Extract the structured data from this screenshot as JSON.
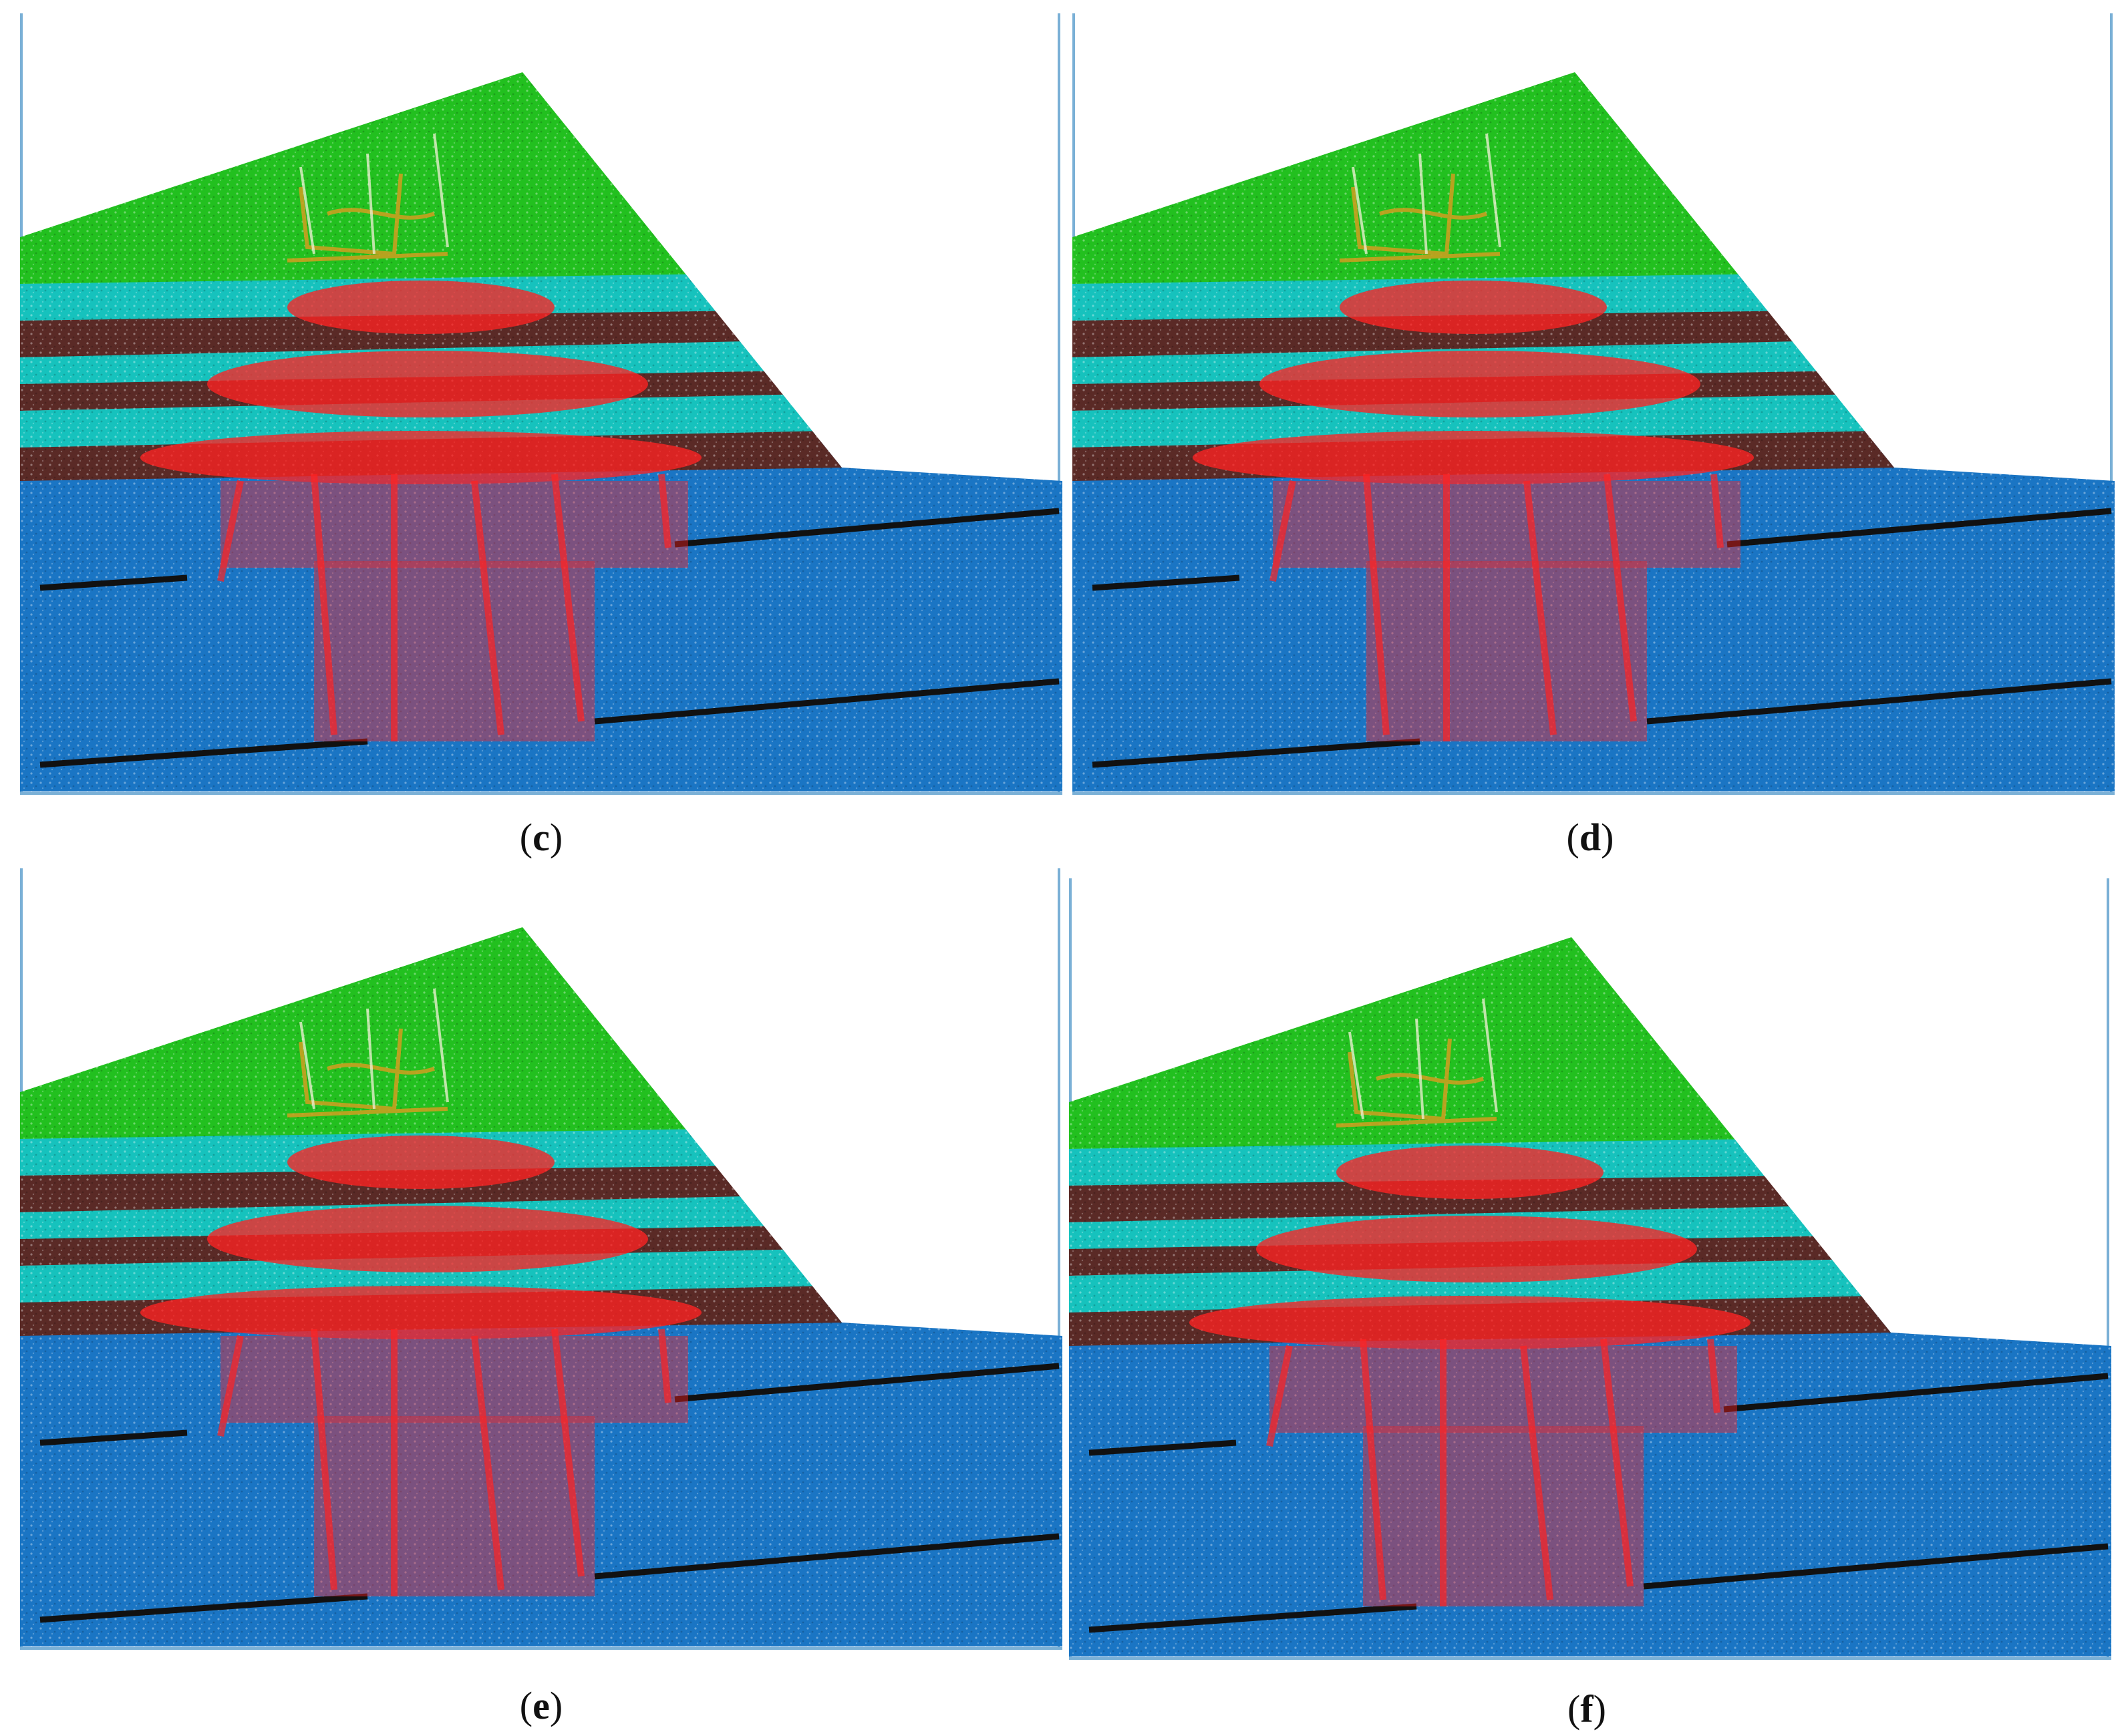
{
  "figure": {
    "panels": [
      {
        "id": "c",
        "label": "c"
      },
      {
        "id": "d",
        "label": "d"
      },
      {
        "id": "e",
        "label": "e"
      },
      {
        "id": "f",
        "label": "f"
      }
    ]
  },
  "colors": {
    "cap_layer": "#22c01f",
    "cyan_layer": "#16c2bd",
    "brown_layer": "#5a2a26",
    "foundation": "#1a75c4",
    "joint": "#111111",
    "damage": "#ff2323",
    "yellow_crack": "#c8a020",
    "frame": "#7ab0d6"
  }
}
